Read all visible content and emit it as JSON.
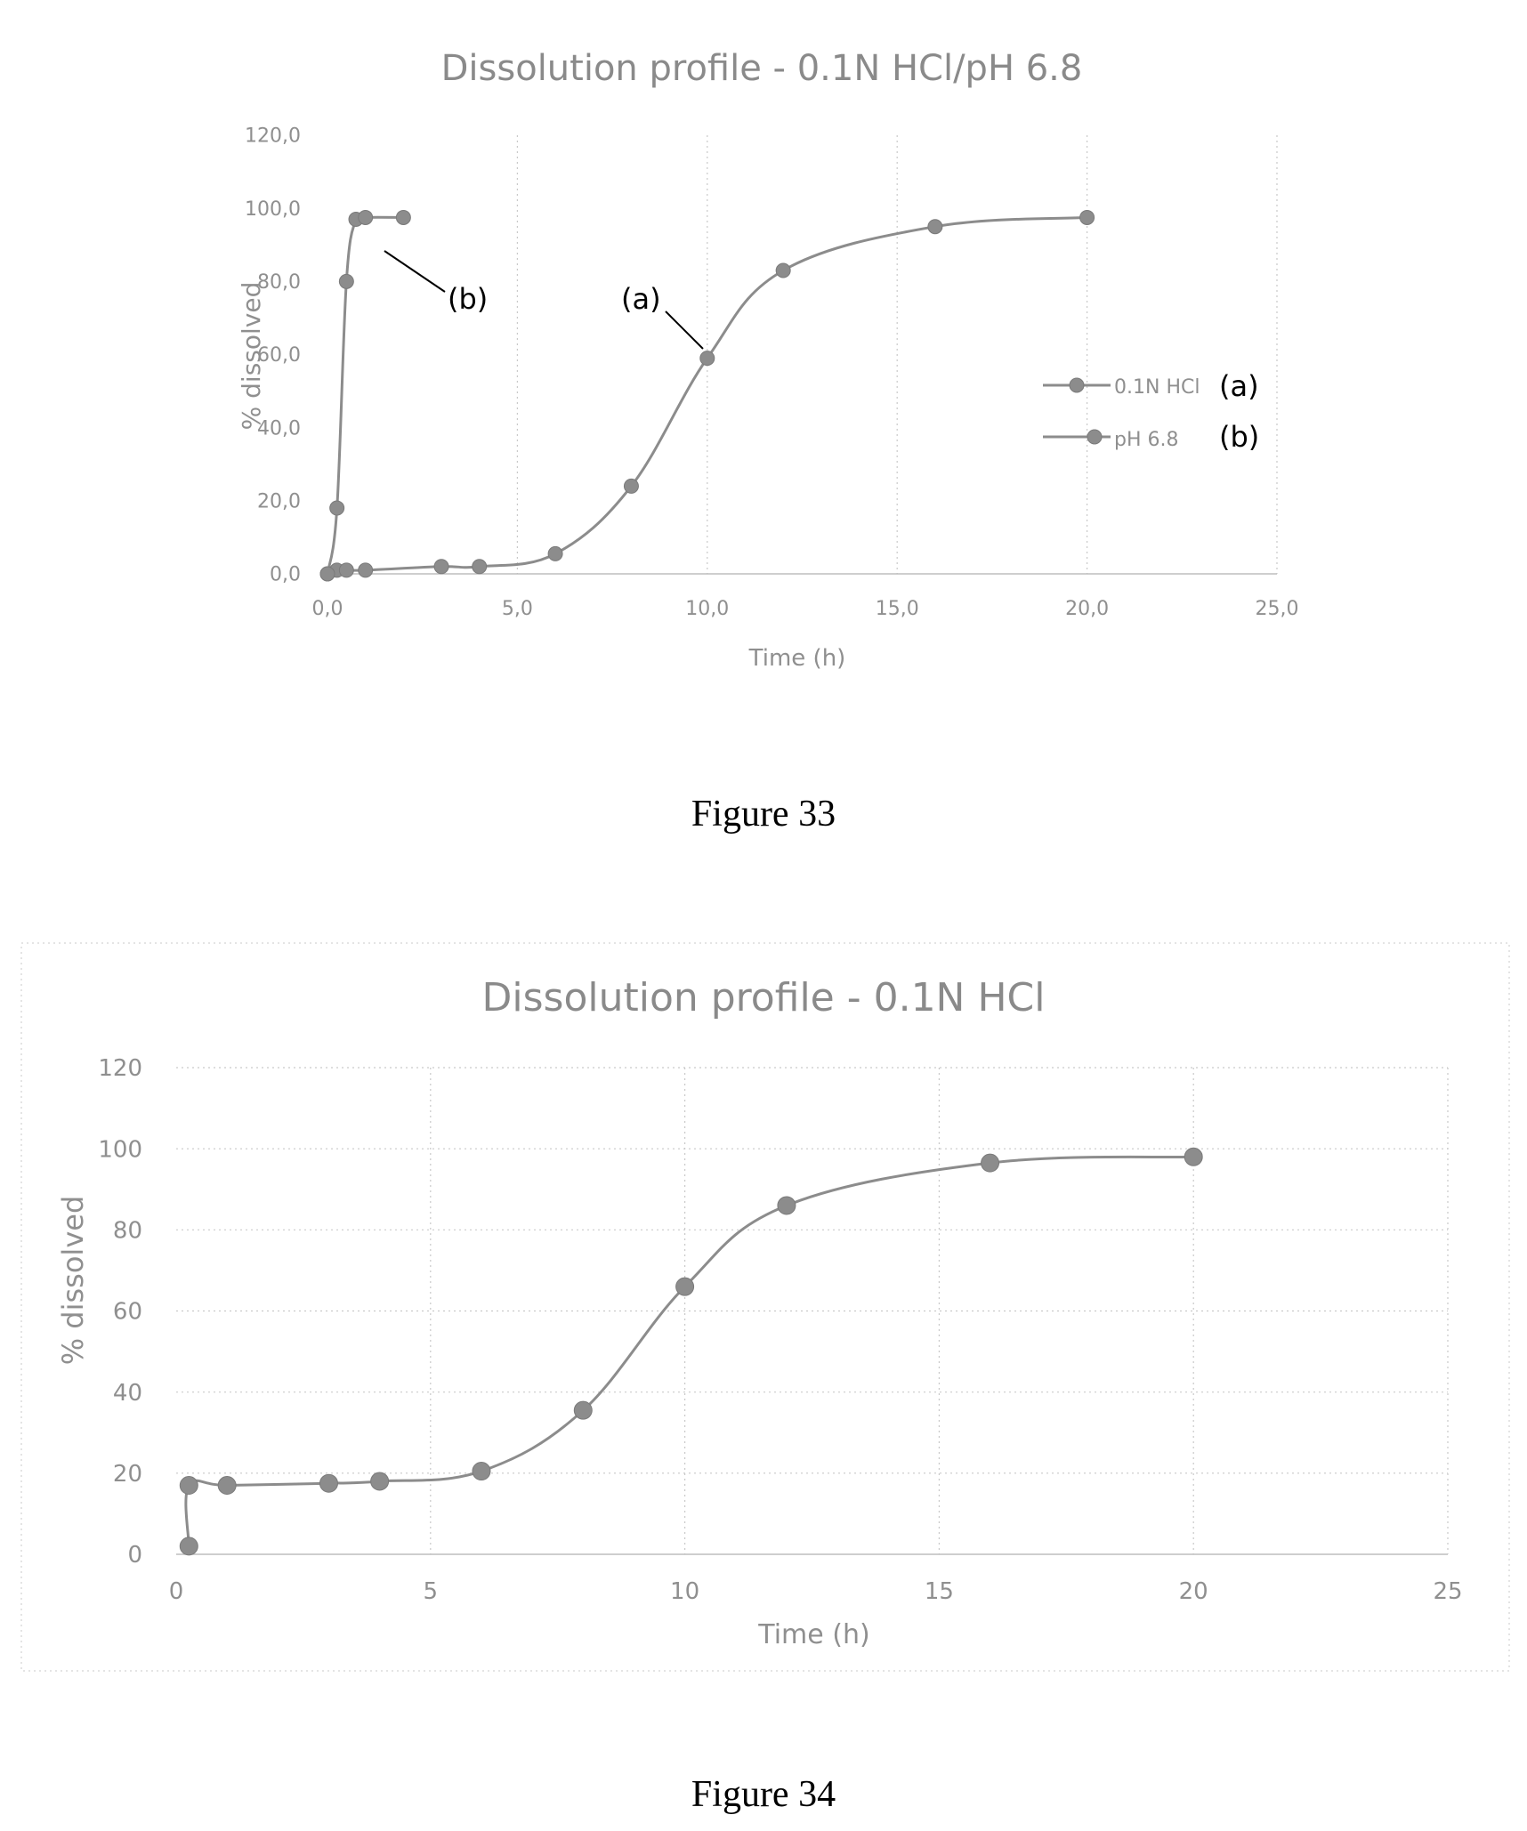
{
  "chart_data": [
    {
      "type": "line",
      "title": "Dissolution profile - 0.1N HCl/pH 6.8",
      "xlabel": "Time (h)",
      "ylabel": "% dissolved",
      "xlim": [
        0,
        25
      ],
      "ylim": [
        0,
        120
      ],
      "xticks": [
        "0,0",
        "5,0",
        "10,0",
        "15,0",
        "20,0",
        "25,0"
      ],
      "yticks": [
        "0,0",
        "20,0",
        "40,0",
        "60,0",
        "80,0",
        "100,0",
        "120,0"
      ],
      "grid": "vertical",
      "legend_position": "right",
      "series": [
        {
          "name": "0.1N HCl",
          "tag": "(a)",
          "x": [
            0,
            0.25,
            0.5,
            1,
            3,
            4,
            6,
            8,
            10,
            12,
            16,
            20
          ],
          "y": [
            0,
            1,
            1,
            1,
            2,
            2,
            5.5,
            24,
            59,
            83,
            95,
            97.5
          ]
        },
        {
          "name": "pH 6.8",
          "tag": "(b)",
          "x": [
            0,
            0.25,
            0.5,
            0.75,
            1,
            2
          ],
          "y": [
            0,
            18,
            80,
            97,
            97.5,
            97.5
          ]
        }
      ],
      "annotations": [
        {
          "text": "(b)",
          "points_to_series": 1
        },
        {
          "text": "(a)",
          "points_to_series": 0
        }
      ]
    },
    {
      "type": "line",
      "title": "Dissolution profile - 0.1N HCl",
      "xlabel": "Time (h)",
      "ylabel": "% dissolved",
      "xlim": [
        0,
        25
      ],
      "ylim": [
        0,
        120
      ],
      "xticks": [
        "0",
        "5",
        "10",
        "15",
        "20",
        "25"
      ],
      "yticks": [
        "0",
        "20",
        "40",
        "60",
        "80",
        "100",
        "120"
      ],
      "grid": "both",
      "legend_position": "none",
      "series": [
        {
          "x": [
            0.25,
            0.25,
            1,
            3,
            4,
            6,
            8,
            10,
            12,
            16,
            20
          ],
          "y": [
            2,
            17,
            17,
            17.5,
            18,
            20.5,
            35.5,
            66,
            86,
            96.5,
            98
          ]
        }
      ]
    }
  ],
  "captions": {
    "figure1": "Figure 33",
    "figure2": "Figure 34"
  }
}
